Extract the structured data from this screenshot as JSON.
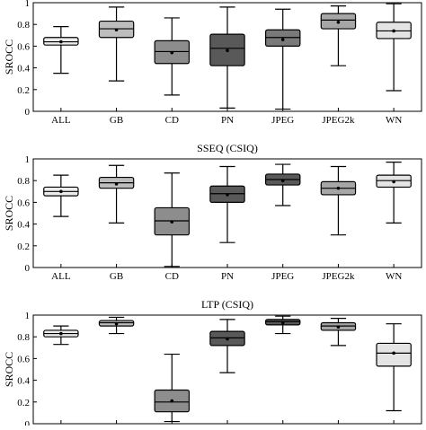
{
  "chart_data": [
    {
      "type": "box",
      "title": "",
      "ylabel": "SROCC",
      "xlabel": "",
      "ylim": [
        0,
        1
      ],
      "yticks": [
        "0",
        "0.2",
        "0.4",
        "0.6",
        "0.8",
        "1"
      ],
      "categories": [
        "ALL",
        "GB",
        "CD",
        "PN",
        "JPEG",
        "JPEG2k",
        "WN"
      ],
      "grid": false,
      "boxes": [
        {
          "min": 0.35,
          "q1": 0.61,
          "median": 0.64,
          "mean": 0.64,
          "q3": 0.68,
          "max": 0.78,
          "color": "#ececec"
        },
        {
          "min": 0.28,
          "q1": 0.68,
          "median": 0.76,
          "mean": 0.75,
          "q3": 0.83,
          "max": 0.96,
          "color": "#bdbdbd"
        },
        {
          "min": 0.15,
          "q1": 0.44,
          "median": 0.55,
          "mean": 0.54,
          "q3": 0.65,
          "max": 0.86,
          "color": "#8d8d8d"
        },
        {
          "min": 0.03,
          "q1": 0.42,
          "median": 0.58,
          "mean": 0.56,
          "q3": 0.71,
          "max": 0.96,
          "color": "#595959"
        },
        {
          "min": 0.02,
          "q1": 0.6,
          "median": 0.68,
          "mean": 0.66,
          "q3": 0.75,
          "max": 0.94,
          "color": "#7a7a7a"
        },
        {
          "min": 0.42,
          "q1": 0.76,
          "median": 0.84,
          "mean": 0.82,
          "q3": 0.9,
          "max": 0.97,
          "color": "#a6a6a6"
        },
        {
          "min": 0.19,
          "q1": 0.67,
          "median": 0.74,
          "mean": 0.74,
          "q3": 0.82,
          "max": 0.99,
          "color": "#e4e4e4"
        }
      ]
    },
    {
      "type": "box",
      "title": "SSEQ (CSIQ)",
      "ylabel": "SROCC",
      "xlabel": "",
      "ylim": [
        0,
        1
      ],
      "yticks": [
        "0",
        "0.2",
        "0.4",
        "0.6",
        "0.8",
        "1"
      ],
      "categories": [
        "ALL",
        "GB",
        "CD",
        "PN",
        "JPEG",
        "JPEG2k",
        "WN"
      ],
      "grid": false,
      "boxes": [
        {
          "min": 0.47,
          "q1": 0.66,
          "median": 0.7,
          "mean": 0.7,
          "q3": 0.74,
          "max": 0.85,
          "color": "#ececec"
        },
        {
          "min": 0.41,
          "q1": 0.73,
          "median": 0.78,
          "mean": 0.77,
          "q3": 0.83,
          "max": 0.94,
          "color": "#bdbdbd"
        },
        {
          "min": 0.01,
          "q1": 0.3,
          "median": 0.43,
          "mean": 0.42,
          "q3": 0.55,
          "max": 0.87,
          "color": "#8d8d8d"
        },
        {
          "min": 0.23,
          "q1": 0.6,
          "median": 0.68,
          "mean": 0.67,
          "q3": 0.75,
          "max": 0.93,
          "color": "#595959"
        },
        {
          "min": 0.57,
          "q1": 0.76,
          "median": 0.81,
          "mean": 0.8,
          "q3": 0.86,
          "max": 0.95,
          "color": "#595959"
        },
        {
          "min": 0.3,
          "q1": 0.67,
          "median": 0.73,
          "mean": 0.73,
          "q3": 0.79,
          "max": 0.93,
          "color": "#a6a6a6"
        },
        {
          "min": 0.41,
          "q1": 0.74,
          "median": 0.8,
          "mean": 0.79,
          "q3": 0.85,
          "max": 0.97,
          "color": "#e4e4e4"
        }
      ]
    },
    {
      "type": "box",
      "title": "LTP (CSIQ)",
      "ylabel": "SROCC",
      "xlabel": "",
      "ylim": [
        0,
        1
      ],
      "yticks": [
        "0",
        "0.2",
        "0.4",
        "0.6",
        "0.8",
        "1"
      ],
      "categories": [
        "ALL",
        "GB",
        "CD",
        "PN",
        "JPEG",
        "JPEG2k",
        "WN"
      ],
      "grid": false,
      "boxes": [
        {
          "min": 0.73,
          "q1": 0.8,
          "median": 0.83,
          "mean": 0.83,
          "q3": 0.86,
          "max": 0.9,
          "color": "#ececec"
        },
        {
          "min": 0.83,
          "q1": 0.9,
          "median": 0.93,
          "mean": 0.92,
          "q3": 0.95,
          "max": 0.98,
          "color": "#bdbdbd"
        },
        {
          "min": 0.02,
          "q1": 0.11,
          "median": 0.2,
          "mean": 0.21,
          "q3": 0.31,
          "max": 0.64,
          "color": "#8d8d8d"
        },
        {
          "min": 0.47,
          "q1": 0.72,
          "median": 0.79,
          "mean": 0.78,
          "q3": 0.85,
          "max": 0.96,
          "color": "#595959"
        },
        {
          "min": 0.83,
          "q1": 0.91,
          "median": 0.94,
          "mean": 0.93,
          "q3": 0.96,
          "max": 0.99,
          "color": "#595959"
        },
        {
          "min": 0.72,
          "q1": 0.86,
          "median": 0.9,
          "mean": 0.89,
          "q3": 0.93,
          "max": 0.97,
          "color": "#a6a6a6"
        },
        {
          "min": 0.12,
          "q1": 0.53,
          "median": 0.65,
          "mean": 0.65,
          "q3": 0.74,
          "max": 0.92,
          "color": "#e4e4e4"
        }
      ]
    }
  ]
}
